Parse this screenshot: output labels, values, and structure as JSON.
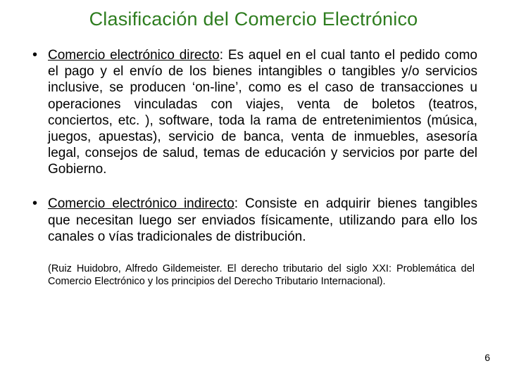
{
  "title": "Clasificación del Comercio Electrónico",
  "title_color": "#2e7d1f",
  "text_color": "#000000",
  "background_color": "#ffffff",
  "bullets": [
    {
      "term": "Comercio electrónico directo",
      "rest": ": Es aquel en el cual tanto el pedido como el pago y el envío de los bienes intangibles o tangibles y/o servicios inclusive, se producen ‘on-line’, como es el caso de transacciones u operaciones vinculadas con viajes, venta de boletos (teatros, conciertos, etc. ), software, toda la rama de entretenimientos (música, juegos, apuestas), servicio de banca, venta de inmuebles, asesoría legal, consejos de salud, temas de educación y servicios por parte del Gobierno."
    },
    {
      "term": "Comercio electrónico indirecto",
      "rest": ": Consiste en adquirir bienes tangibles que necesitan luego ser enviados físicamente, utilizando para ello los canales o vías tradicionales de distribución."
    }
  ],
  "citation": "(Ruiz Huidobro, Alfredo Gildemeister. El derecho tributario del siglo XXI: Problemática del Comercio Electrónico y los principios del Derecho Tributario Internacional).",
  "page_number": "6",
  "typography": {
    "title_fontsize": 27,
    "body_fontsize": 19,
    "citation_fontsize": 14.5,
    "font_family": "Arial"
  }
}
